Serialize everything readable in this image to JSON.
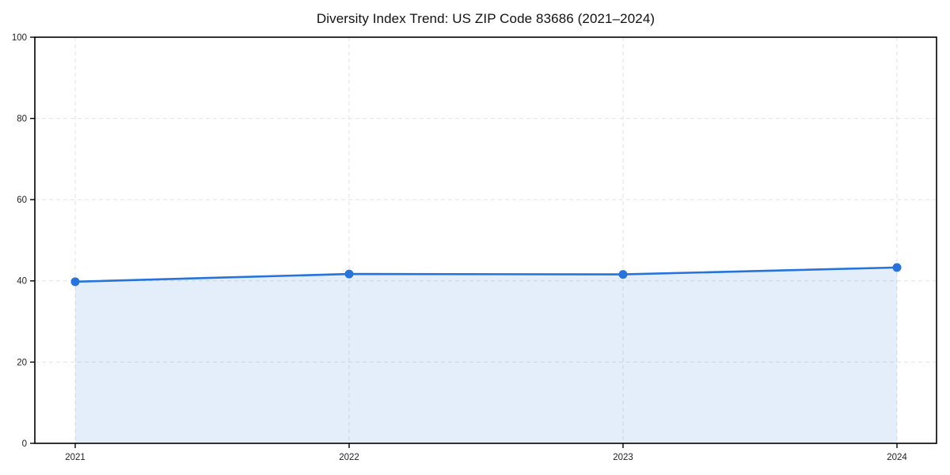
{
  "chart_data": {
    "type": "area",
    "title": "Diversity Index Trend: US ZIP Code 83686 (2021–2024)",
    "categories": [
      "2021",
      "2022",
      "2023",
      "2024"
    ],
    "series": [
      {
        "name": "Diversity Index",
        "values": [
          39.8,
          41.7,
          41.6,
          43.3
        ]
      }
    ],
    "xlabel": "",
    "ylabel": "",
    "ylim": [
      0,
      100
    ],
    "yticks": [
      0,
      20,
      40,
      60,
      80,
      100
    ],
    "grid": true,
    "grid_style": "dashed",
    "legend": false,
    "legend_position": "none",
    "marker": "circle",
    "colors": {
      "line": "#2573db",
      "marker": "#2573db",
      "area_fill": "rgba(37, 115, 219, 0.12)",
      "grid": "#e2e2e2",
      "frame": "#000000",
      "tick_label": "#222222",
      "title": "#111111",
      "background": "#ffffff"
    }
  }
}
